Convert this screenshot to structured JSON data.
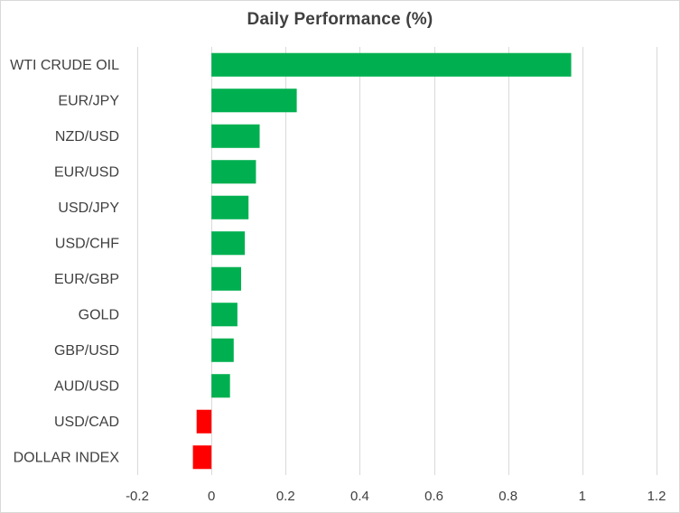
{
  "chart_data": {
    "type": "bar",
    "orientation": "horizontal",
    "title": "Daily Performance  (%)",
    "categories": [
      "WTI CRUDE OIL",
      "EUR/JPY",
      "NZD/USD",
      "EUR/USD",
      "USD/JPY",
      "USD/CHF",
      "EUR/GBP",
      "GOLD",
      "GBP/USD",
      "AUD/USD",
      "USD/CAD",
      "DOLLAR INDEX"
    ],
    "values": [
      0.97,
      0.23,
      0.13,
      0.12,
      0.1,
      0.09,
      0.08,
      0.07,
      0.06,
      0.05,
      -0.04,
      -0.05
    ],
    "xlim": [
      -0.2,
      1.2
    ],
    "xticks": [
      -0.2,
      0,
      0.2,
      0.4,
      0.6,
      0.8,
      1,
      1.2
    ],
    "xtick_labels": [
      "-0.2",
      "0",
      "0.2",
      "0.4",
      "0.6",
      "0.8",
      "1",
      "1.2"
    ],
    "grid": "vertical",
    "legend": "none",
    "colors": {
      "positive": "#00b050",
      "negative": "#ff0000",
      "grid": "#d9d9d9",
      "text": "#404040"
    }
  }
}
